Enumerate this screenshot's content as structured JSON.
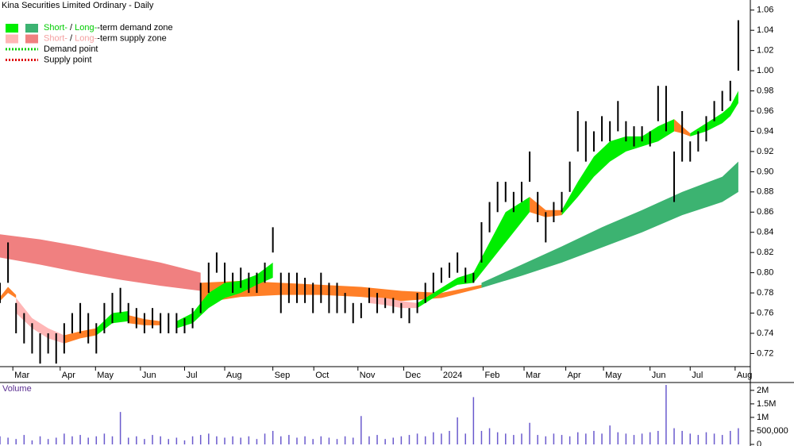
{
  "chart_data": {
    "type": "range-bar",
    "title": "Kina Securities Limited Ordinary - Daily",
    "volume_label": "Volume",
    "legend": [
      {
        "swatches": [
          "#00ee00",
          "#3cb371"
        ],
        "short": "Short-",
        "sep": " / ",
        "long": "Long-",
        "rest": "-term demand zone",
        "color": "#00cc00"
      },
      {
        "swatches": [
          "#ffb6b6",
          "#f08080"
        ],
        "short": "Short-",
        "sep": " / ",
        "long": "Long-",
        "rest": "-term supply zone",
        "color": "#f4a0a0"
      },
      {
        "dotted": "#00cc00",
        "text": "Demand point"
      },
      {
        "dotted": "#dd0000",
        "text": "Supply point"
      }
    ],
    "xlim": [
      0,
      93
    ],
    "xticks": [
      {
        "value": 1.6,
        "label": "Mar"
      },
      {
        "value": 7.5,
        "label": "Apr"
      },
      {
        "value": 11.9,
        "label": "May"
      },
      {
        "value": 17.5,
        "label": "Jun"
      },
      {
        "value": 23,
        "label": "Jul"
      },
      {
        "value": 28,
        "label": "Aug"
      },
      {
        "value": 34,
        "label": "Sep"
      },
      {
        "value": 39.1,
        "label": "Oct"
      },
      {
        "value": 44.6,
        "label": "Nov"
      },
      {
        "value": 50.3,
        "label": "Dec"
      },
      {
        "value": 55,
        "label": "2024"
      },
      {
        "value": 60.2,
        "label": "Feb"
      },
      {
        "value": 65.3,
        "label": "Mar"
      },
      {
        "value": 70.5,
        "label": "Apr"
      },
      {
        "value": 75.2,
        "label": "May"
      },
      {
        "value": 81,
        "label": "Jun"
      },
      {
        "value": 86,
        "label": "Jul"
      },
      {
        "value": 91.6,
        "label": "Aug"
      }
    ],
    "ylim": [
      0.707,
      1.07
    ],
    "yticks": [
      0.72,
      0.74,
      0.76,
      0.78,
      {
        "value": 0.8,
        "label": "0.80"
      },
      0.82,
      0.84,
      0.86,
      0.88,
      {
        "value": 0.9,
        "label": "0.90"
      },
      0.92,
      0.94,
      0.96,
      0.98,
      {
        "value": 1,
        "label": "1.00"
      },
      1.02,
      1.04,
      1.06
    ],
    "bar_color": "#000000",
    "high": [
      0.79,
      0.83,
      0.77,
      0.76,
      0.75,
      0.74,
      0.74,
      0.74,
      0.75,
      0.76,
      0.77,
      0.76,
      0.75,
      0.77,
      0.78,
      0.785,
      0.77,
      0.765,
      0.76,
      0.765,
      0.76,
      0.76,
      0.76,
      0.755,
      0.765,
      0.79,
      0.81,
      0.82,
      0.81,
      0.8,
      0.805,
      0.8,
      0.8,
      0.81,
      0.845,
      0.8,
      0.8,
      0.8,
      0.795,
      0.79,
      0.8,
      0.79,
      0.79,
      0.78,
      0.77,
      0.77,
      0.785,
      0.78,
      0.775,
      0.775,
      0.77,
      0.765,
      0.78,
      0.79,
      0.8,
      0.805,
      0.81,
      0.82,
      0.805,
      0.8,
      0.85,
      0.87,
      0.89,
      0.89,
      0.88,
      0.89,
      0.92,
      0.88,
      0.86,
      0.87,
      0.88,
      0.91,
      0.96,
      0.95,
      0.94,
      0.955,
      0.95,
      0.97,
      0.95,
      0.945,
      0.945,
      0.94,
      0.985,
      0.985,
      0.92,
      0.96,
      0.93,
      0.94,
      0.955,
      0.97,
      0.98,
      0.99,
      1.05
    ],
    "low": [
      0.77,
      0.79,
      0.74,
      0.73,
      0.72,
      0.71,
      0.72,
      0.71,
      0.72,
      0.74,
      0.74,
      0.73,
      0.72,
      0.74,
      0.75,
      0.76,
      0.75,
      0.745,
      0.74,
      0.745,
      0.74,
      0.74,
      0.74,
      0.74,
      0.745,
      0.76,
      0.78,
      0.8,
      0.79,
      0.78,
      0.785,
      0.78,
      0.78,
      0.79,
      0.82,
      0.76,
      0.77,
      0.77,
      0.77,
      0.76,
      0.77,
      0.76,
      0.76,
      0.76,
      0.75,
      0.755,
      0.77,
      0.76,
      0.765,
      0.76,
      0.755,
      0.75,
      0.76,
      0.77,
      0.78,
      0.79,
      0.795,
      0.8,
      0.79,
      0.79,
      0.81,
      0.84,
      0.86,
      0.87,
      0.86,
      0.87,
      0.89,
      0.85,
      0.83,
      0.85,
      0.86,
      0.88,
      0.92,
      0.91,
      0.92,
      0.93,
      0.93,
      0.94,
      0.93,
      0.925,
      0.93,
      0.925,
      0.95,
      0.94,
      0.87,
      0.91,
      0.91,
      0.92,
      0.93,
      0.95,
      0.96,
      0.97,
      1.0
    ],
    "zones": [
      {
        "color": "#f08080",
        "x": [
          0,
          5,
          10,
          15,
          20,
          25
        ],
        "lower": [
          0.815,
          0.808,
          0.8,
          0.793,
          0.787,
          0.782
        ],
        "upper": [
          0.838,
          0.833,
          0.826,
          0.818,
          0.81,
          0.8
        ]
      },
      {
        "color": "#ff7f27",
        "x": [
          25,
          30,
          35,
          40,
          45,
          50,
          55,
          60
        ],
        "lower": [
          0.77,
          0.776,
          0.778,
          0.778,
          0.776,
          0.772,
          0.775,
          0.785
        ],
        "upper": [
          0.79,
          0.792,
          0.79,
          0.788,
          0.786,
          0.782,
          0.78,
          0.788
        ]
      },
      {
        "color": "#3cb371",
        "x": [
          60,
          65,
          70,
          75,
          80,
          85,
          90,
          92
        ],
        "lower": [
          0.785,
          0.797,
          0.81,
          0.825,
          0.84,
          0.857,
          0.87,
          0.88
        ],
        "upper": [
          0.79,
          0.808,
          0.826,
          0.845,
          0.862,
          0.88,
          0.895,
          0.91
        ]
      },
      {
        "color": "#ff7f27",
        "x": [
          0,
          1,
          2
        ],
        "lower": [
          0.772,
          0.78,
          0.775
        ],
        "upper": [
          0.776,
          0.786,
          0.778
        ]
      },
      {
        "color": "#ffb6b6",
        "x": [
          2,
          4,
          6,
          8
        ],
        "lower": [
          0.76,
          0.745,
          0.735,
          0.73
        ],
        "upper": [
          0.775,
          0.755,
          0.745,
          0.738
        ]
      },
      {
        "color": "#ff7f27",
        "x": [
          8,
          10,
          12
        ],
        "lower": [
          0.73,
          0.735,
          0.738
        ],
        "upper": [
          0.738,
          0.742,
          0.745
        ]
      },
      {
        "color": "#00ee00",
        "x": [
          12,
          14,
          16
        ],
        "lower": [
          0.738,
          0.75,
          0.752
        ],
        "upper": [
          0.745,
          0.76,
          0.762
        ]
      },
      {
        "color": "#ff7f27",
        "x": [
          16,
          18,
          20
        ],
        "lower": [
          0.75,
          0.748,
          0.748
        ],
        "upper": [
          0.758,
          0.754,
          0.752
        ]
      },
      {
        "color": "#00ee00",
        "x": [
          22,
          24,
          26,
          28,
          30,
          32,
          34
        ],
        "lower": [
          0.745,
          0.75,
          0.765,
          0.775,
          0.78,
          0.788,
          0.795
        ],
        "upper": [
          0.752,
          0.76,
          0.78,
          0.79,
          0.792,
          0.798,
          0.81
        ]
      },
      {
        "color": "#ffb6b6",
        "x": [
          46,
          48,
          50,
          52
        ],
        "lower": [
          0.77,
          0.768,
          0.765,
          0.765
        ],
        "upper": [
          0.776,
          0.775,
          0.772,
          0.77
        ]
      },
      {
        "color": "#00ee00",
        "x": [
          52,
          55,
          57,
          59,
          61,
          63,
          65,
          66
        ],
        "lower": [
          0.765,
          0.78,
          0.788,
          0.79,
          0.81,
          0.83,
          0.85,
          0.86
        ],
        "upper": [
          0.77,
          0.785,
          0.795,
          0.8,
          0.83,
          0.86,
          0.87,
          0.875
        ]
      },
      {
        "color": "#ff7f27",
        "x": [
          66,
          68,
          70
        ],
        "lower": [
          0.86,
          0.855,
          0.857
        ],
        "upper": [
          0.875,
          0.862,
          0.862
        ]
      },
      {
        "color": "#00ee00",
        "x": [
          70,
          72,
          74,
          76,
          78,
          80,
          82,
          84
        ],
        "lower": [
          0.857,
          0.875,
          0.895,
          0.91,
          0.92,
          0.925,
          0.93,
          0.94
        ],
        "upper": [
          0.862,
          0.89,
          0.915,
          0.93,
          0.935,
          0.935,
          0.945,
          0.952
        ]
      },
      {
        "color": "#ff7f27",
        "x": [
          84,
          85,
          86
        ],
        "lower": [
          0.94,
          0.938,
          0.935
        ],
        "upper": [
          0.952,
          0.945,
          0.938
        ]
      },
      {
        "color": "#00ee00",
        "x": [
          86,
          88,
          90,
          91,
          92
        ],
        "lower": [
          0.935,
          0.94,
          0.948,
          0.955,
          0.968
        ],
        "upper": [
          0.938,
          0.948,
          0.958,
          0.965,
          0.98
        ]
      }
    ],
    "volume": [
      300000,
      250000,
      200000,
      350000,
      150000,
      300000,
      200000,
      250000,
      400000,
      300000,
      350000,
      250000,
      300000,
      400000,
      300000,
      1200000,
      250000,
      300000,
      200000,
      350000,
      300000,
      200000,
      250000,
      150000,
      300000,
      350000,
      400000,
      300000,
      250000,
      300000,
      250000,
      300000,
      200000,
      400000,
      500000,
      300000,
      350000,
      250000,
      300000,
      200000,
      300000,
      250000,
      200000,
      300000,
      250000,
      1050000,
      300000,
      350000,
      200000,
      250000,
      300000,
      350000,
      400000,
      300000,
      450000,
      400000,
      500000,
      1000000,
      400000,
      1750000,
      500000,
      600000,
      450000,
      400000,
      350000,
      400000,
      800000,
      350000,
      300000,
      400000,
      350000,
      300000,
      450000,
      400000,
      500000,
      400000,
      700000,
      450000,
      400000,
      350000,
      400000,
      450000,
      500000,
      2200000,
      600000,
      500000,
      400000,
      350000,
      450000,
      400000,
      350000,
      500000,
      600000
    ],
    "volume_color": "#6a5acd",
    "volume_lim": [
      0,
      2290000
    ],
    "volume_ticks": [
      {
        "value": 2000000,
        "label": "2M"
      },
      {
        "value": 1500000,
        "label": "1.5M"
      },
      {
        "value": 1000000,
        "label": "1M"
      },
      {
        "value": 500000,
        "label": "500,000"
      },
      0
    ]
  }
}
